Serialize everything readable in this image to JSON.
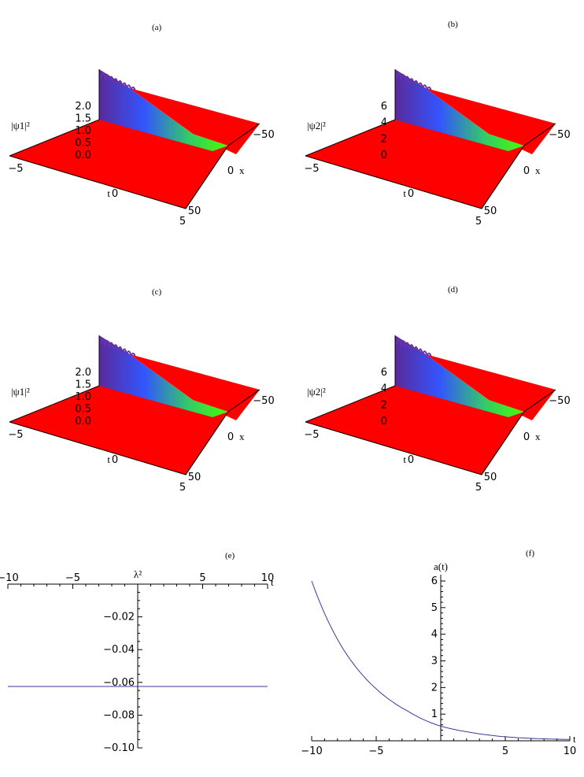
{
  "panels": {
    "a": {
      "label": "(a)"
    },
    "b": {
      "label": "(b)"
    },
    "c": {
      "label": "(c)"
    },
    "d": {
      "label": "(d)"
    },
    "e": {
      "label": "(e)"
    },
    "f": {
      "label": "(f)"
    }
  },
  "colors": {
    "surface": "#ff0000",
    "peak_green": "#33ff00",
    "peak_blue": "#3355ff",
    "peak_purple": "#6633aa",
    "curve": "#3a3a9a"
  },
  "chart_data": [
    {
      "panel": "a",
      "type": "surface3d",
      "zlabel": "|ψ1|²",
      "ztick_labels": [
        "0.0",
        "0.5",
        "1.0",
        "1.5",
        "2.0"
      ],
      "t_tick_labels": [
        "−5",
        "0",
        "5"
      ],
      "t_label": "t",
      "x_tick_labels": [
        "−50",
        "0",
        "50"
      ],
      "x_label": "x"
    },
    {
      "panel": "b",
      "type": "surface3d",
      "zlabel": "|ψ2|²",
      "ztick_labels": [
        "0",
        "2",
        "4",
        "6"
      ],
      "t_tick_labels": [
        "−5",
        "0",
        "5"
      ],
      "t_label": "t",
      "x_tick_labels": [
        "−50",
        "0",
        "50"
      ],
      "x_label": "x"
    },
    {
      "panel": "c",
      "type": "surface3d",
      "zlabel": "|ψ1|²",
      "ztick_labels": [
        "0.0",
        "0.5",
        "1.0",
        "1.5",
        "2.0"
      ],
      "t_tick_labels": [
        "−5",
        "0",
        "5"
      ],
      "t_label": "t",
      "x_tick_labels": [
        "−50",
        "0",
        "50"
      ],
      "x_label": "x"
    },
    {
      "panel": "d",
      "type": "surface3d",
      "zlabel": "|ψ2|²",
      "ztick_labels": [
        "0",
        "2",
        "4",
        "6"
      ],
      "t_tick_labels": [
        "−5",
        "0",
        "5"
      ],
      "t_label": "t",
      "x_tick_labels": [
        "−50",
        "0",
        "50"
      ],
      "x_label": "x"
    },
    {
      "panel": "e",
      "type": "line",
      "xlabel": "t",
      "ylabel": "λ²",
      "xlim": [
        -10,
        10
      ],
      "ylim": [
        -0.1,
        0
      ],
      "x_ticks": [
        "−10",
        "−5",
        "5",
        "10"
      ],
      "y_ticks": [
        "−0.02",
        "−0.04",
        "−0.06",
        "−0.08",
        "−0.10"
      ],
      "series": [
        {
          "x": [
            -10,
            10
          ],
          "y": [
            -0.0625,
            -0.0625
          ]
        }
      ]
    },
    {
      "panel": "f",
      "type": "line",
      "xlabel": "t",
      "ylabel": "a(t)",
      "xlim": [
        -10,
        10
      ],
      "ylim": [
        0,
        6
      ],
      "x_ticks": [
        "−10",
        "−5",
        "5",
        "10"
      ],
      "y_ticks": [
        "1",
        "2",
        "3",
        "4",
        "5",
        "6"
      ],
      "series": [
        {
          "x": [
            -10,
            -7.5,
            -5,
            -2.5,
            0,
            2.5,
            5,
            7.5,
            10
          ],
          "y": [
            6.0,
            3.4,
            1.95,
            1.1,
            0.55,
            0.3,
            0.15,
            0.08,
            0.05
          ]
        }
      ]
    }
  ]
}
